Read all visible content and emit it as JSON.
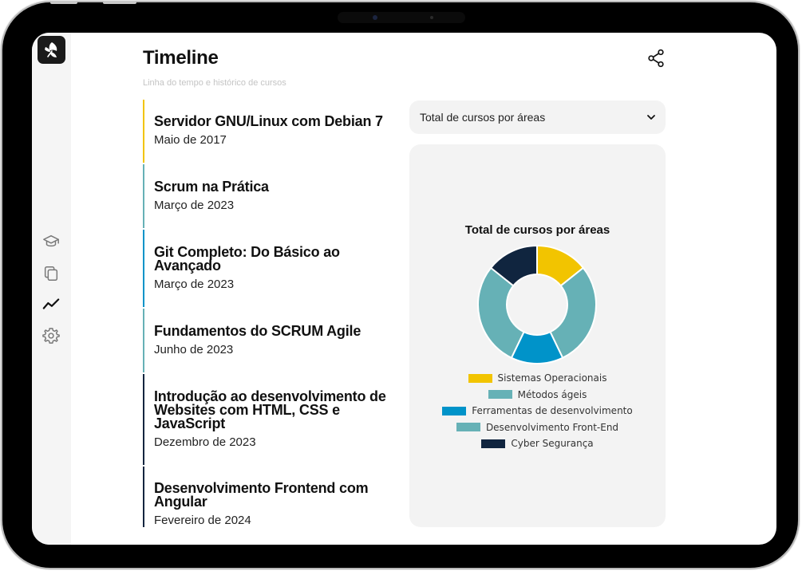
{
  "page": {
    "title": "Timeline",
    "subtitle": "Linha do tempo e histórico de cursos"
  },
  "sidebar": {
    "logo_icon": "leaf-logo-icon",
    "items": [
      {
        "icon": "graduation-cap-icon"
      },
      {
        "icon": "copy-icon"
      },
      {
        "icon": "trending-line-icon",
        "active": true
      },
      {
        "icon": "gear-icon"
      }
    ]
  },
  "header": {
    "share_icon": "share-icon"
  },
  "timeline": [
    {
      "title": "Servidor GNU/Linux com Debian 7",
      "date": "Maio de 2017",
      "color": "#f2c400"
    },
    {
      "title": "Scrum na Prática",
      "date": "Março de 2023",
      "color": "#66b1b6"
    },
    {
      "title": "Git Completo: Do Básico ao Avançado",
      "date": "Março de 2023",
      "color": "#0093c9"
    },
    {
      "title": "Fundamentos do SCRUM Agile",
      "date": "Junho de 2023",
      "color": "#66b1b6"
    },
    {
      "title": "Introdução ao desenvolvimento de Websites com HTML, CSS e JavaScript",
      "date": "Dezembro de 2023",
      "color": "#10253f"
    },
    {
      "title": "Desenvolvimento Frontend com Angular",
      "date": "Fevereiro de 2024",
      "color": "#10253f"
    }
  ],
  "filter": {
    "selected": "Total de cursos por áreas",
    "icon": "chevron-down-icon"
  },
  "chart_data": {
    "type": "pie",
    "title": "Total de cursos por áreas",
    "donut": true,
    "categories": [
      "Sistemas Operacionais",
      "Métodos ágeis",
      "Ferramentas de desenvolvimento",
      "Desenvolvimento Front-End",
      "Cyber Segurança"
    ],
    "values": [
      1,
      2,
      1,
      2,
      1
    ],
    "colors": [
      "#f2c400",
      "#66b1b6",
      "#0093c9",
      "#66b1b6",
      "#10253f"
    ],
    "legend": "bottom"
  }
}
